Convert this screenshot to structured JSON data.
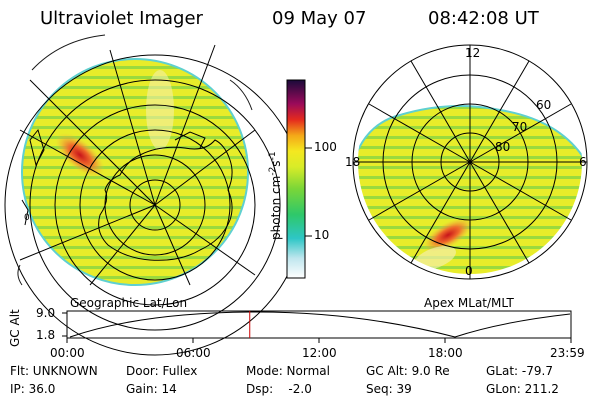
{
  "header": {
    "instrument": "Ultraviolet Imager",
    "date": "09 May 07",
    "time": "08:42:08 UT"
  },
  "left_map": {
    "caption": "Geographic Lat/Lon"
  },
  "right_map": {
    "caption": "Apex MLat/MLT",
    "mlt_labels": [
      "12",
      "18",
      "6",
      "0"
    ],
    "mlat_labels": [
      "60",
      "70",
      "80"
    ]
  },
  "colorbar": {
    "unit_label": "photon cm",
    "unit_exp1": "-2",
    "unit_mid": "s",
    "unit_exp2": "-1",
    "ticks": [
      "100",
      "10"
    ]
  },
  "altitude_plot": {
    "ylabel": "GC Alt",
    "yticks": [
      "9.0",
      "1.8"
    ],
    "xticks": [
      "00:00",
      "06:00",
      "12:00",
      "18:00",
      "23:59"
    ],
    "marker_time_fraction": 0.3626
  },
  "footer": {
    "flt": "Flt: UNKNOWN",
    "ip": "IP: 36.0",
    "door": "Door: Fullex",
    "gain": "Gain: 14",
    "mode": "Mode: Normal",
    "dsp": "Dsp:    -2.0",
    "gcalt": "GC Alt: 9.0 Re",
    "seq": "Seq: 39",
    "glat": "GLat: -79.7",
    "glon": "GLon: 211.2"
  },
  "colors": {
    "image_base": "#e8ec2a",
    "stripe": "#8fd63a",
    "aurora": "#d42a1a",
    "marker": "#cc0000"
  }
}
